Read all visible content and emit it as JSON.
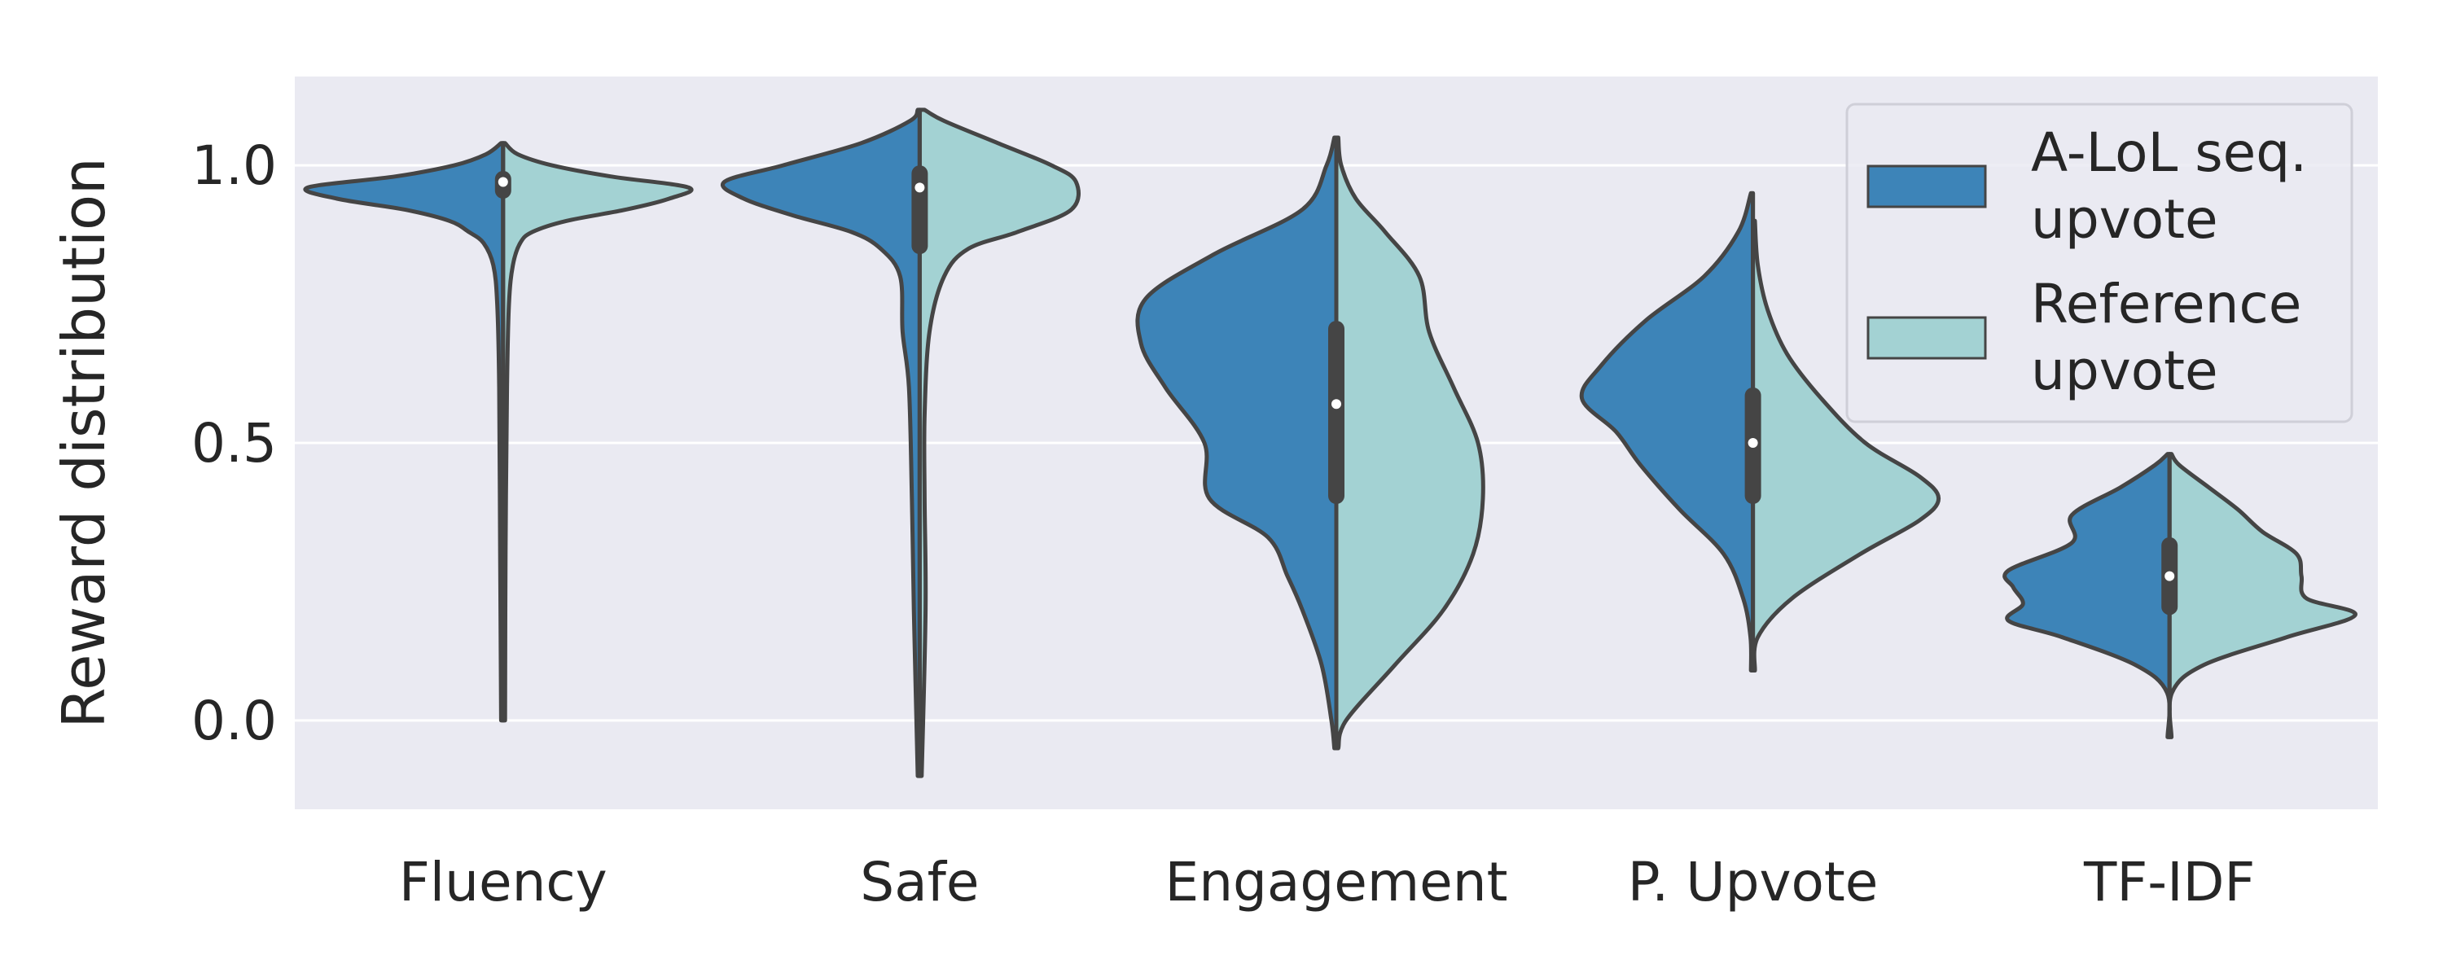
{
  "chart_data": {
    "type": "violin",
    "split": true,
    "xlabel": "",
    "ylabel": "Reward distribution",
    "ylim": [
      -0.16,
      1.16
    ],
    "yticks": [
      0.0,
      0.5,
      1.0
    ],
    "ytick_labels": [
      "0.0",
      "0.5",
      "1.0"
    ],
    "grid": true,
    "legend_position": "upper-right",
    "categories": [
      "Fluency",
      "Safe",
      "Engagement",
      "P. Upvote",
      "TF-IDF"
    ],
    "series": [
      {
        "name": "A-LoL seq.\nupvote",
        "color": "#3d84b8",
        "side": "left"
      },
      {
        "name": "Reference\nupvote",
        "color": "#a3d2d3",
        "side": "right"
      }
    ],
    "violins": [
      {
        "category": "Fluency",
        "min": 0.0,
        "max": 1.04,
        "q1": 0.94,
        "median": 0.97,
        "q3": 0.99,
        "left": [
          [
            0.0,
            0.003
          ],
          [
            0.3,
            0.006
          ],
          [
            0.6,
            0.008
          ],
          [
            0.75,
            0.012
          ],
          [
            0.82,
            0.02
          ],
          [
            0.86,
            0.04
          ],
          [
            0.88,
            0.07
          ],
          [
            0.9,
            0.11
          ],
          [
            0.92,
            0.2
          ],
          [
            0.94,
            0.34
          ],
          [
            0.96,
            0.4
          ],
          [
            0.98,
            0.22
          ],
          [
            1.0,
            0.1
          ],
          [
            1.02,
            0.035
          ],
          [
            1.04,
            0.0
          ]
        ],
        "right": [
          [
            0.0,
            0.003
          ],
          [
            0.3,
            0.005
          ],
          [
            0.6,
            0.008
          ],
          [
            0.75,
            0.012
          ],
          [
            0.82,
            0.02
          ],
          [
            0.86,
            0.035
          ],
          [
            0.88,
            0.06
          ],
          [
            0.9,
            0.13
          ],
          [
            0.92,
            0.25
          ],
          [
            0.94,
            0.34
          ],
          [
            0.96,
            0.38
          ],
          [
            0.98,
            0.22
          ],
          [
            1.0,
            0.1
          ],
          [
            1.02,
            0.03
          ],
          [
            1.04,
            0.0
          ]
        ]
      },
      {
        "category": "Safe",
        "min": -0.1,
        "max": 1.1,
        "q1": 0.84,
        "median": 0.96,
        "q3": 1.0,
        "left": [
          [
            -0.1,
            0.003
          ],
          [
            0.2,
            0.012
          ],
          [
            0.4,
            0.016
          ],
          [
            0.6,
            0.022
          ],
          [
            0.7,
            0.035
          ],
          [
            0.8,
            0.04
          ],
          [
            0.85,
            0.08
          ],
          [
            0.88,
            0.14
          ],
          [
            0.91,
            0.26
          ],
          [
            0.94,
            0.36
          ],
          [
            0.97,
            0.4
          ],
          [
            1.0,
            0.28
          ],
          [
            1.04,
            0.12
          ],
          [
            1.08,
            0.02
          ],
          [
            1.1,
            0.0
          ]
        ],
        "right": [
          [
            -0.1,
            0.003
          ],
          [
            0.2,
            0.012
          ],
          [
            0.4,
            0.01
          ],
          [
            0.55,
            0.01
          ],
          [
            0.7,
            0.02
          ],
          [
            0.8,
            0.05
          ],
          [
            0.85,
            0.1
          ],
          [
            0.88,
            0.2
          ],
          [
            0.92,
            0.31
          ],
          [
            0.97,
            0.32
          ],
          [
            1.0,
            0.27
          ],
          [
            1.04,
            0.16
          ],
          [
            1.08,
            0.05
          ],
          [
            1.1,
            0.01
          ]
        ]
      },
      {
        "category": "Engagement",
        "min": -0.05,
        "max": 1.05,
        "q1": 0.39,
        "median": 0.57,
        "q3": 0.72,
        "left": [
          [
            -0.05,
            0.003
          ],
          [
            0.0,
            0.01
          ],
          [
            0.1,
            0.03
          ],
          [
            0.2,
            0.07
          ],
          [
            0.26,
            0.1
          ],
          [
            0.33,
            0.14
          ],
          [
            0.4,
            0.26
          ],
          [
            0.5,
            0.27
          ],
          [
            0.6,
            0.35
          ],
          [
            0.68,
            0.4
          ],
          [
            0.76,
            0.39
          ],
          [
            0.84,
            0.25
          ],
          [
            0.92,
            0.07
          ],
          [
            1.0,
            0.02
          ],
          [
            1.05,
            0.0
          ]
        ],
        "right": [
          [
            -0.05,
            0.003
          ],
          [
            0.0,
            0.02
          ],
          [
            0.1,
            0.12
          ],
          [
            0.2,
            0.22
          ],
          [
            0.3,
            0.28
          ],
          [
            0.4,
            0.3
          ],
          [
            0.5,
            0.29
          ],
          [
            0.6,
            0.24
          ],
          [
            0.7,
            0.19
          ],
          [
            0.8,
            0.17
          ],
          [
            0.88,
            0.1
          ],
          [
            0.94,
            0.04
          ],
          [
            1.0,
            0.01
          ],
          [
            1.05,
            0.0
          ]
        ]
      },
      {
        "category": "P. Upvote",
        "min": 0.09,
        "max": 0.95,
        "q1": 0.39,
        "median": 0.5,
        "q3": 0.6,
        "left": [
          [
            0.09,
            0.0
          ],
          [
            0.15,
            0.005
          ],
          [
            0.22,
            0.02
          ],
          [
            0.3,
            0.06
          ],
          [
            0.38,
            0.15
          ],
          [
            0.46,
            0.23
          ],
          [
            0.52,
            0.28
          ],
          [
            0.58,
            0.35
          ],
          [
            0.64,
            0.31
          ],
          [
            0.72,
            0.22
          ],
          [
            0.8,
            0.1
          ],
          [
            0.88,
            0.03
          ],
          [
            0.95,
            0.0
          ]
        ],
        "right": [
          [
            0.09,
            0.0
          ],
          [
            0.15,
            0.01
          ],
          [
            0.22,
            0.08
          ],
          [
            0.3,
            0.22
          ],
          [
            0.36,
            0.34
          ],
          [
            0.4,
            0.38
          ],
          [
            0.44,
            0.34
          ],
          [
            0.5,
            0.23
          ],
          [
            0.58,
            0.14
          ],
          [
            0.66,
            0.07
          ],
          [
            0.74,
            0.03
          ],
          [
            0.82,
            0.01
          ],
          [
            0.9,
            0.0
          ]
        ]
      },
      {
        "category": "TF-IDF",
        "min": -0.03,
        "max": 0.48,
        "q1": 0.19,
        "median": 0.26,
        "q3": 0.33,
        "left": [
          [
            -0.03,
            0.0
          ],
          [
            0.05,
            0.005
          ],
          [
            0.1,
            0.07
          ],
          [
            0.15,
            0.22
          ],
          [
            0.18,
            0.33
          ],
          [
            0.21,
            0.3
          ],
          [
            0.24,
            0.32
          ],
          [
            0.27,
            0.33
          ],
          [
            0.32,
            0.2
          ],
          [
            0.37,
            0.2
          ],
          [
            0.42,
            0.1
          ],
          [
            0.46,
            0.03
          ],
          [
            0.48,
            0.0
          ]
        ],
        "right": [
          [
            -0.03,
            0.0
          ],
          [
            0.05,
            0.005
          ],
          [
            0.1,
            0.07
          ],
          [
            0.15,
            0.24
          ],
          [
            0.19,
            0.38
          ],
          [
            0.22,
            0.28
          ],
          [
            0.26,
            0.27
          ],
          [
            0.3,
            0.26
          ],
          [
            0.34,
            0.19
          ],
          [
            0.38,
            0.14
          ],
          [
            0.42,
            0.08
          ],
          [
            0.46,
            0.02
          ],
          [
            0.48,
            0.0
          ]
        ]
      }
    ]
  }
}
